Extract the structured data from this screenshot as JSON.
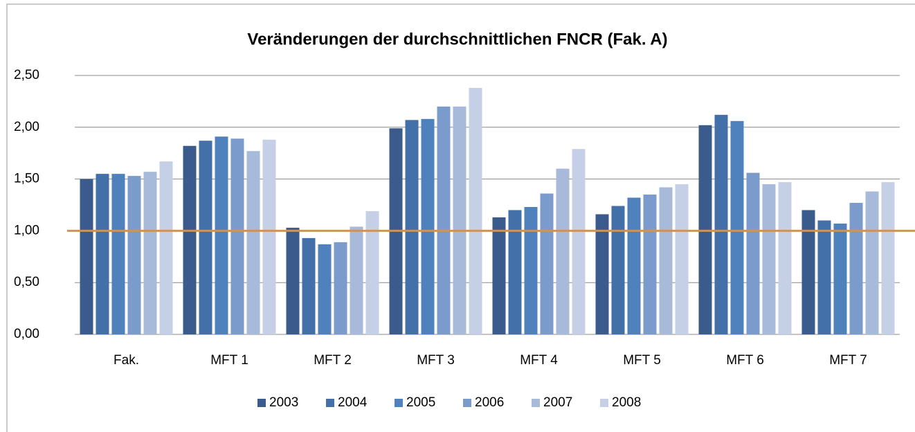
{
  "chart_data": {
    "type": "bar",
    "title": "Veränderungen der durchschnittlichen FNCR (Fak. A)",
    "categories": [
      "Fak.",
      "MFT 1",
      "MFT 2",
      "MFT 3",
      "MFT 4",
      "MFT 5",
      "MFT 6",
      "MFT 7"
    ],
    "series": [
      {
        "name": "2003",
        "color": "#3a5b8c",
        "values": [
          1.5,
          1.82,
          1.03,
          1.99,
          1.13,
          1.16,
          2.02,
          1.2
        ]
      },
      {
        "name": "2004",
        "color": "#4470aa",
        "values": [
          1.55,
          1.87,
          0.93,
          2.07,
          1.2,
          1.24,
          2.12,
          1.1
        ]
      },
      {
        "name": "2005",
        "color": "#4f81bd",
        "values": [
          1.55,
          1.91,
          0.87,
          2.08,
          1.23,
          1.32,
          2.06,
          1.07
        ]
      },
      {
        "name": "2006",
        "color": "#7b9bcc",
        "values": [
          1.53,
          1.89,
          0.89,
          2.2,
          1.36,
          1.35,
          1.56,
          1.27
        ]
      },
      {
        "name": "2007",
        "color": "#a8bada",
        "values": [
          1.57,
          1.77,
          1.04,
          2.2,
          1.6,
          1.42,
          1.45,
          1.38
        ]
      },
      {
        "name": "2008",
        "color": "#c5d0e6",
        "values": [
          1.67,
          1.88,
          1.19,
          2.38,
          1.79,
          1.45,
          1.47,
          1.47
        ]
      }
    ],
    "ylim": [
      0,
      2.5
    ],
    "yticks": [
      {
        "value": 0,
        "label": "0,00"
      },
      {
        "value": 0.5,
        "label": "0,50"
      },
      {
        "value": 1,
        "label": "1,00"
      },
      {
        "value": 1.5,
        "label": "1,50"
      },
      {
        "value": 2,
        "label": "2,00"
      },
      {
        "value": 2.5,
        "label": "2,50"
      }
    ],
    "grid": true,
    "reference_line": {
      "value": 1,
      "color": "#c8955f"
    },
    "legend": "bottom"
  }
}
